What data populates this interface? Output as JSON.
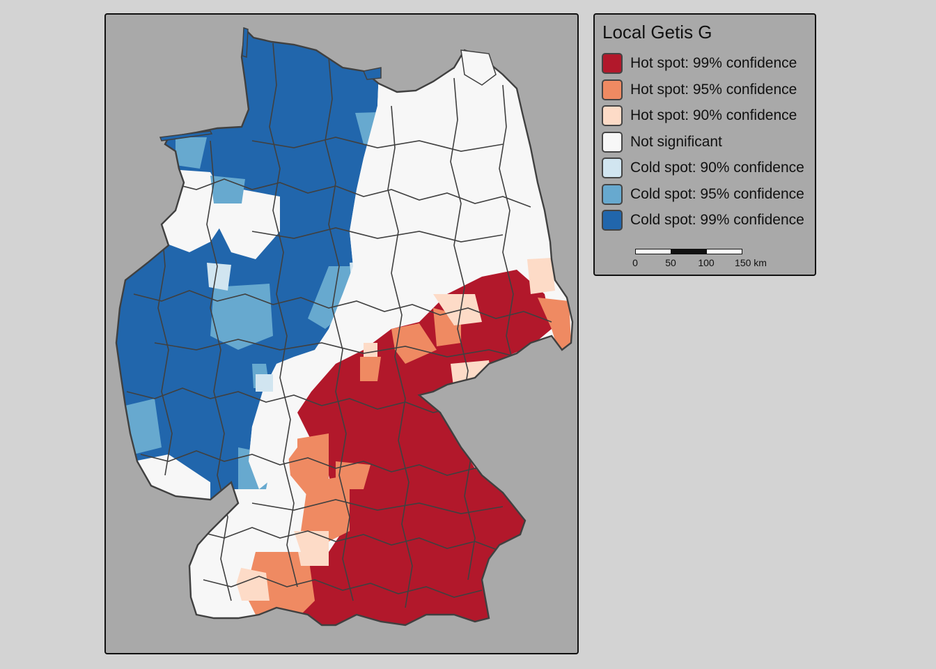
{
  "colors": {
    "hot99": "#b2182b",
    "hot95": "#ef8a62",
    "hot90": "#fddbc7",
    "notsig": "#f7f7f7",
    "cold90": "#d1e5f0",
    "cold95": "#67a9cf",
    "cold99": "#2166ac",
    "border": "#404040",
    "panel": "#a9a9a9"
  },
  "legend": {
    "title": "Local Getis G",
    "items": [
      {
        "label": "Hot spot: 99% confidence",
        "color": "#b2182b"
      },
      {
        "label": "Hot spot: 95% confidence",
        "color": "#ef8a62"
      },
      {
        "label": "Hot spot: 90% confidence",
        "color": "#fddbc7"
      },
      {
        "label": "Not significant",
        "color": "#f7f7f7"
      },
      {
        "label": "Cold spot: 90% confidence",
        "color": "#d1e5f0"
      },
      {
        "label": "Cold spot: 95% confidence",
        "color": "#67a9cf"
      },
      {
        "label": "Cold spot: 99% confidence",
        "color": "#2166ac"
      }
    ]
  },
  "scale_bar": {
    "ticks": [
      "0",
      "50",
      "100",
      "150 km"
    ]
  }
}
